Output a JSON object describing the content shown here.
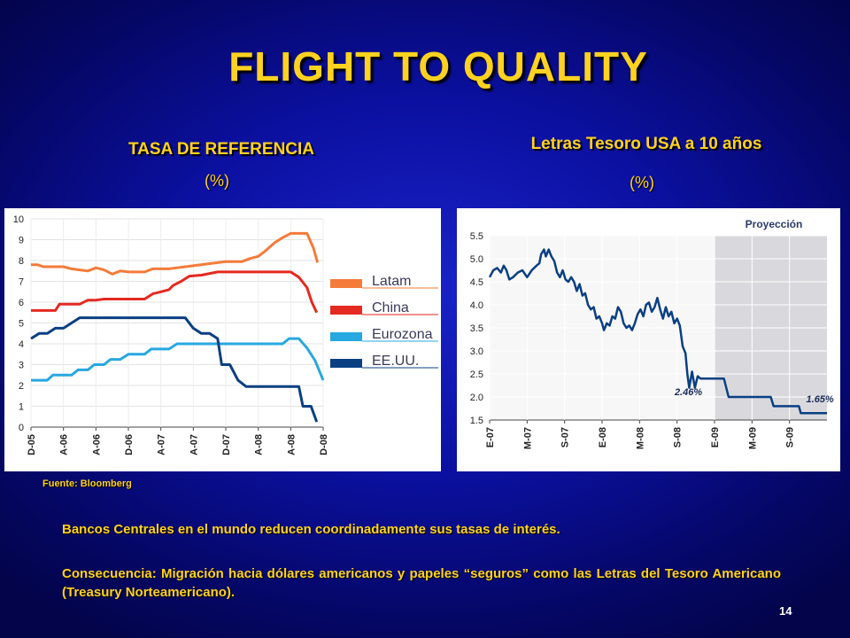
{
  "title": "FLIGHT TO QUALITY",
  "left_heading": "TASA DE REFERENCIA",
  "left_unit": "(%)",
  "right_heading": "Letras Tesoro USA a 10 años",
  "right_unit": "(%)",
  "source": "Fuente: Bloomberg",
  "paragraph1": "Bancos Centrales en el mundo reducen coordinadamente sus tasas de interés.",
  "paragraph2": "Consecuencia: Migración hacia dólares americanos y papeles “seguros” como las Letras del Tesoro Americano (Treasury Norteamericano).",
  "page_number": "14",
  "chart_data": [
    {
      "type": "line",
      "ylim": [
        0,
        10
      ],
      "yticks": [
        0,
        1,
        2,
        3,
        4,
        5,
        6,
        7,
        8,
        9,
        10
      ],
      "xlim": [
        0,
        36
      ],
      "xticks": [
        {
          "x": 0,
          "label": "D-05"
        },
        {
          "x": 4,
          "label": "A-06"
        },
        {
          "x": 8,
          "label": "A-06"
        },
        {
          "x": 12,
          "label": "D-06"
        },
        {
          "x": 16,
          "label": "A-07"
        },
        {
          "x": 20,
          "label": "A-07"
        },
        {
          "x": 24,
          "label": "D-07"
        },
        {
          "x": 28,
          "label": "A-08"
        },
        {
          "x": 32,
          "label": "A-08"
        },
        {
          "x": 36,
          "label": "D-08"
        }
      ],
      "legend_position": "right",
      "series": [
        {
          "name": "Latam",
          "color": "#f47b3a",
          "points": [
            [
              0,
              7.8
            ],
            [
              0.8,
              7.8
            ],
            [
              1.5,
              7.7
            ],
            [
              3,
              7.7
            ],
            [
              4,
              7.7
            ],
            [
              5,
              7.6
            ],
            [
              6,
              7.55
            ],
            [
              7,
              7.5
            ],
            [
              8,
              7.65
            ],
            [
              9,
              7.55
            ],
            [
              10,
              7.35
            ],
            [
              11,
              7.5
            ],
            [
              12,
              7.45
            ],
            [
              14,
              7.45
            ],
            [
              15,
              7.6
            ],
            [
              17,
              7.6
            ],
            [
              18,
              7.65
            ],
            [
              20,
              7.75
            ],
            [
              22,
              7.85
            ],
            [
              24,
              7.95
            ],
            [
              26,
              7.95
            ],
            [
              27,
              8.1
            ],
            [
              28,
              8.2
            ],
            [
              29,
              8.5
            ],
            [
              30,
              8.85
            ],
            [
              31,
              9.1
            ],
            [
              32,
              9.3
            ],
            [
              34,
              9.3
            ],
            [
              34.8,
              8.6
            ],
            [
              35.3,
              7.9
            ]
          ]
        },
        {
          "name": "China",
          "color": "#e42a21",
          "points": [
            [
              0,
              5.6
            ],
            [
              3,
              5.6
            ],
            [
              3.5,
              5.9
            ],
            [
              6,
              5.9
            ],
            [
              7,
              6.1
            ],
            [
              8,
              6.1
            ],
            [
              9,
              6.15
            ],
            [
              14,
              6.15
            ],
            [
              15,
              6.4
            ],
            [
              16,
              6.5
            ],
            [
              17,
              6.6
            ],
            [
              17.5,
              6.8
            ],
            [
              18.5,
              7.0
            ],
            [
              19.5,
              7.25
            ],
            [
              21,
              7.3
            ],
            [
              23,
              7.45
            ],
            [
              28,
              7.45
            ],
            [
              32,
              7.45
            ],
            [
              33,
              7.2
            ],
            [
              34,
              6.7
            ],
            [
              34.6,
              6.0
            ],
            [
              35.2,
              5.5
            ]
          ]
        },
        {
          "name": "Eurozona",
          "color": "#27a8e0",
          "points": [
            [
              0,
              2.25
            ],
            [
              2,
              2.25
            ],
            [
              2.7,
              2.5
            ],
            [
              5,
              2.5
            ],
            [
              5.8,
              2.75
            ],
            [
              7,
              2.75
            ],
            [
              7.8,
              3.0
            ],
            [
              9,
              3.0
            ],
            [
              9.8,
              3.25
            ],
            [
              11,
              3.25
            ],
            [
              12,
              3.5
            ],
            [
              14,
              3.5
            ],
            [
              14.8,
              3.75
            ],
            [
              17,
              3.75
            ],
            [
              18,
              4.0
            ],
            [
              28,
              4.0
            ],
            [
              31,
              4.0
            ],
            [
              31.8,
              4.25
            ],
            [
              33,
              4.25
            ],
            [
              34,
              3.8
            ],
            [
              35,
              3.2
            ],
            [
              36,
              2.25
            ]
          ]
        },
        {
          "name": "EE.UU.",
          "color": "#0a3f83",
          "points": [
            [
              0,
              4.25
            ],
            [
              1,
              4.5
            ],
            [
              2,
              4.5
            ],
            [
              3,
              4.75
            ],
            [
              4,
              4.75
            ],
            [
              5,
              5.0
            ],
            [
              6,
              5.25
            ],
            [
              19,
              5.25
            ],
            [
              20,
              4.75
            ],
            [
              21,
              4.5
            ],
            [
              22,
              4.5
            ],
            [
              23,
              4.25
            ],
            [
              23.5,
              3.0
            ],
            [
              24.5,
              3.0
            ],
            [
              25.5,
              2.25
            ],
            [
              26.5,
              1.95
            ],
            [
              28,
              1.95
            ],
            [
              32,
              1.95
            ],
            [
              33,
              1.95
            ],
            [
              33.5,
              1.0
            ],
            [
              34.5,
              1.0
            ],
            [
              35.2,
              0.25
            ]
          ]
        }
      ]
    },
    {
      "type": "line",
      "ylim": [
        1.5,
        5.5
      ],
      "yticks": [
        1.5,
        2.0,
        2.5,
        3.0,
        3.5,
        4.0,
        4.5,
        5.0,
        5.5
      ],
      "xlim": [
        0,
        36
      ],
      "xticks": [
        {
          "x": 0,
          "label": "E-07"
        },
        {
          "x": 4,
          "label": "M-07"
        },
        {
          "x": 8,
          "label": "S-07"
        },
        {
          "x": 12,
          "label": "E-08"
        },
        {
          "x": 16,
          "label": "M-08"
        },
        {
          "x": 20,
          "label": "S-08"
        },
        {
          "x": 24,
          "label": "E-09"
        },
        {
          "x": 28,
          "label": "M-09"
        },
        {
          "x": 32,
          "label": "S-09"
        }
      ],
      "projection_label": "Proyección",
      "projection_start": 24,
      "annotations": [
        {
          "x": 21.5,
          "y": 2.46,
          "label": "2.46%"
        },
        {
          "x": 34.5,
          "y": 1.65,
          "label": "1.65%"
        }
      ],
      "series": [
        {
          "name": "",
          "color": "#0a3f83",
          "points": [
            [
              0,
              4.6
            ],
            [
              0.4,
              4.75
            ],
            [
              0.8,
              4.8
            ],
            [
              1.2,
              4.7
            ],
            [
              1.5,
              4.85
            ],
            [
              1.8,
              4.75
            ],
            [
              2.1,
              4.55
            ],
            [
              2.5,
              4.6
            ],
            [
              3,
              4.7
            ],
            [
              3.5,
              4.75
            ],
            [
              4,
              4.6
            ],
            [
              4.5,
              4.75
            ],
            [
              5,
              4.85
            ],
            [
              5.3,
              4.9
            ],
            [
              5.5,
              5.1
            ],
            [
              5.8,
              5.2
            ],
            [
              6,
              5.05
            ],
            [
              6.3,
              5.2
            ],
            [
              6.6,
              5.05
            ],
            [
              6.9,
              4.95
            ],
            [
              7.2,
              4.7
            ],
            [
              7.5,
              4.6
            ],
            [
              7.8,
              4.75
            ],
            [
              8.1,
              4.55
            ],
            [
              8.4,
              4.5
            ],
            [
              8.7,
              4.6
            ],
            [
              9,
              4.5
            ],
            [
              9.3,
              4.3
            ],
            [
              9.6,
              4.45
            ],
            [
              9.9,
              4.2
            ],
            [
              10.2,
              4.25
            ],
            [
              10.5,
              4.0
            ],
            [
              10.8,
              3.9
            ],
            [
              11.1,
              3.95
            ],
            [
              11.4,
              3.7
            ],
            [
              11.7,
              3.75
            ],
            [
              12,
              3.6
            ],
            [
              12.2,
              3.45
            ],
            [
              12.5,
              3.6
            ],
            [
              12.8,
              3.55
            ],
            [
              13.1,
              3.75
            ],
            [
              13.4,
              3.7
            ],
            [
              13.7,
              3.95
            ],
            [
              14,
              3.85
            ],
            [
              14.3,
              3.6
            ],
            [
              14.6,
              3.5
            ],
            [
              14.9,
              3.55
            ],
            [
              15.2,
              3.45
            ],
            [
              15.5,
              3.6
            ],
            [
              15.8,
              3.8
            ],
            [
              16.1,
              3.9
            ],
            [
              16.4,
              3.75
            ],
            [
              16.7,
              4.0
            ],
            [
              17,
              4.05
            ],
            [
              17.3,
              3.85
            ],
            [
              17.6,
              3.95
            ],
            [
              17.9,
              4.15
            ],
            [
              18.2,
              3.9
            ],
            [
              18.5,
              3.7
            ],
            [
              18.8,
              3.95
            ],
            [
              19.1,
              3.75
            ],
            [
              19.4,
              3.85
            ],
            [
              19.7,
              3.6
            ],
            [
              20,
              3.7
            ],
            [
              20.3,
              3.55
            ],
            [
              20.6,
              3.1
            ],
            [
              20.9,
              2.95
            ],
            [
              21.1,
              2.5
            ],
            [
              21.3,
              2.2
            ],
            [
              21.6,
              2.55
            ],
            [
              21.9,
              2.2
            ],
            [
              22.2,
              2.45
            ],
            [
              22.5,
              2.4
            ],
            [
              24,
              2.4
            ],
            [
              25,
              2.4
            ],
            [
              25.5,
              2.0
            ],
            [
              30,
              2.0
            ],
            [
              30.3,
              1.8
            ],
            [
              32,
              1.8
            ],
            [
              33,
              1.8
            ],
            [
              33.2,
              1.65
            ],
            [
              36,
              1.65
            ]
          ]
        }
      ]
    }
  ]
}
